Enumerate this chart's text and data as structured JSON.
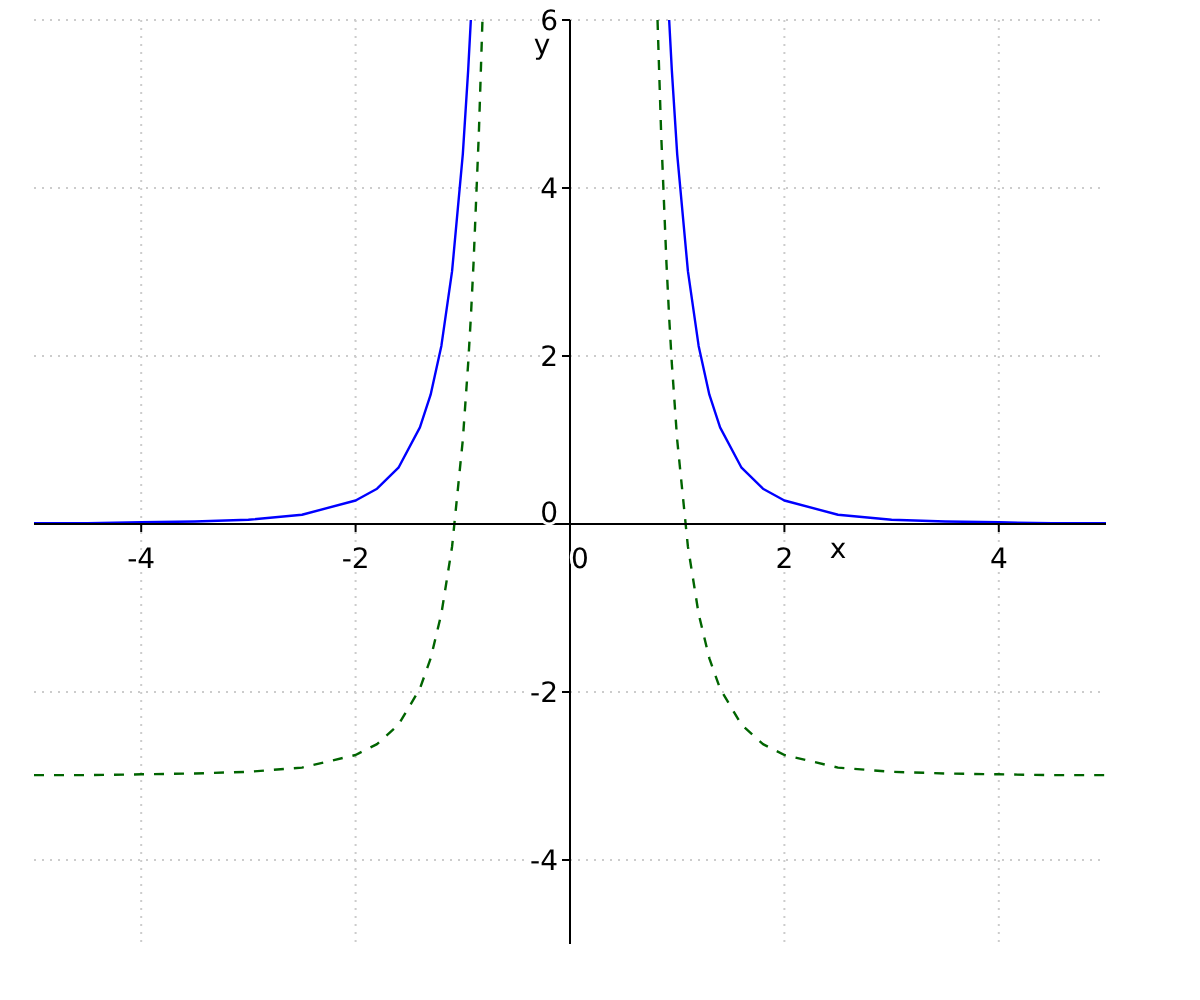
{
  "chart_data": {
    "type": "line",
    "xlabel": "x",
    "ylabel": "y",
    "xlim": [
      -5,
      5
    ],
    "ylim": [
      -5,
      6
    ],
    "xticks": [
      -4,
      -2,
      0,
      2,
      4
    ],
    "yticks": [
      -4,
      -2,
      0,
      2,
      4,
      6
    ],
    "grid": true,
    "series": [
      {
        "color": "#0000ff",
        "line_style": "solid",
        "x": [
          -5,
          -4.5,
          -4,
          -3.5,
          -3,
          -2.5,
          -2,
          -1.8,
          -1.6,
          -1.4,
          -1.3,
          -1.2,
          -1.1,
          -1.0,
          -0.95,
          -0.925,
          0,
          0.925,
          0.95,
          1.0,
          1.1,
          1.2,
          1.3,
          1.4,
          1.6,
          1.8,
          2,
          2.5,
          3,
          3.5,
          4,
          4.5,
          5
        ],
        "values": [
          0.01,
          0.01,
          0.02,
          0.03,
          0.05,
          0.11,
          0.28,
          0.42,
          0.67,
          1.15,
          1.54,
          2.12,
          3.01,
          4.4,
          5.4,
          6.0,
          null,
          6.0,
          5.4,
          4.4,
          3.01,
          2.12,
          1.54,
          1.15,
          0.67,
          0.42,
          0.28,
          0.11,
          0.05,
          0.03,
          0.02,
          0.01,
          0.01
        ]
      },
      {
        "color": "#006400",
        "line_style": "dashed",
        "x": [
          -5,
          -4.5,
          -4,
          -3.5,
          -3,
          -2.5,
          -2,
          -1.8,
          -1.6,
          -1.4,
          -1.3,
          -1.2,
          -1.1,
          -1.0,
          -0.95,
          -0.925,
          -0.9,
          -0.85,
          -0.8165,
          0,
          0.8165,
          0.85,
          0.9,
          0.925,
          0.95,
          1.0,
          1.1,
          1.2,
          1.3,
          1.4,
          1.6,
          1.8,
          2,
          2.5,
          3,
          3.5,
          4,
          4.5,
          5
        ],
        "values": [
          -2.99,
          -2.99,
          -2.98,
          -2.97,
          -2.95,
          -2.9,
          -2.75,
          -2.62,
          -2.39,
          -1.96,
          -1.6,
          -1.07,
          -0.27,
          1.0,
          1.91,
          2.46,
          3.1,
          4.66,
          6.0,
          null,
          6.0,
          4.66,
          3.1,
          2.46,
          1.91,
          1.0,
          -0.27,
          -1.07,
          -1.6,
          -1.96,
          -2.39,
          -2.62,
          -2.75,
          -2.9,
          -2.95,
          -2.97,
          -2.98,
          -2.99,
          -2.99
        ]
      }
    ]
  }
}
